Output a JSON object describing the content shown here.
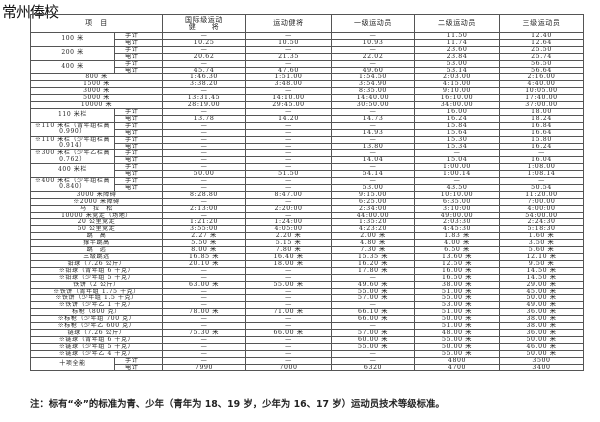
{
  "brand": "常州俸校",
  "header": {
    "item": "项　目",
    "cols": [
      "国际级运动\n健　　将",
      "运动健将",
      "一级运动员",
      "二级运动员",
      "三级运动员"
    ]
  },
  "groups": [
    {
      "label": "100 米",
      "rows": [
        {
          "sub": "手计",
          "v": [
            "—",
            "—",
            "—",
            "11.50",
            "12.40"
          ]
        },
        {
          "sub": "电计",
          "v": [
            "10.25",
            "10.50",
            "10.93",
            "11.74",
            "12.64"
          ]
        }
      ]
    },
    {
      "label": "200 米",
      "rows": [
        {
          "sub": "手计",
          "v": [
            "—",
            "—",
            "—",
            "23.60",
            "25.50"
          ]
        },
        {
          "sub": "电计",
          "v": [
            "20.62",
            "21.35",
            "22.02",
            "23.84",
            "25.74"
          ]
        }
      ]
    },
    {
      "label": "400 米",
      "rows": [
        {
          "sub": "手计",
          "v": [
            "—",
            "—",
            "—",
            "53.00",
            "56.50"
          ]
        },
        {
          "sub": "电计",
          "v": [
            "45.74",
            "47.60",
            "49.60",
            "53.14",
            "56.64"
          ]
        }
      ]
    },
    {
      "label": "800 米",
      "rows": [
        {
          "v": [
            "1:46.30",
            "1:51.00",
            "1:54.50",
            "2:03.00",
            "2:16.00"
          ]
        }
      ]
    },
    {
      "label": "1500 米",
      "rows": [
        {
          "v": [
            "3:38.20",
            "3:48.00",
            "3:54.90",
            "4:15.00",
            "4:40.00"
          ]
        }
      ]
    },
    {
      "label": "3000 米",
      "rows": [
        {
          "v": [
            "—",
            "—",
            "8:35.00",
            "9:10.00",
            "10:05.00"
          ]
        }
      ]
    },
    {
      "label": "5000 米",
      "rows": [
        {
          "v": [
            "13:31.45",
            "14:10.00",
            "14:40.00",
            "16:10.00",
            "17:40.00"
          ]
        }
      ]
    },
    {
      "label": "10000 米",
      "rows": [
        {
          "v": [
            "28:19.00",
            "29:45.00",
            "30:50.00",
            "34:00.00",
            "37:00.00"
          ]
        }
      ]
    },
    {
      "label": "110 米栏",
      "rows": [
        {
          "sub": "手计",
          "v": [
            "—",
            "—",
            "—",
            "16.00",
            "18.00"
          ]
        },
        {
          "sub": "电计",
          "v": [
            "13.78",
            "14.20",
            "14.73",
            "16.24",
            "18.24"
          ]
        }
      ]
    },
    {
      "label": "※110 米栏（青年组栏高 0.990）",
      "rows": [
        {
          "sub": "手计",
          "v": [
            "—",
            "—",
            "—",
            "15.84",
            "16.84"
          ]
        },
        {
          "sub": "电计",
          "v": [
            "—",
            "—",
            "14.93",
            "15.64",
            "16.64"
          ]
        }
      ]
    },
    {
      "label": "※110 米栏（少年组栏高 0.914）",
      "rows": [
        {
          "sub": "手计",
          "v": [
            "—",
            "—",
            "—",
            "15.30",
            "15.80"
          ]
        },
        {
          "sub": "电计",
          "v": [
            "—",
            "—",
            "13.80",
            "15.34",
            "16.24"
          ]
        }
      ]
    },
    {
      "label": "※300 米栏（少年乙栏高 0.762）",
      "rows": [
        {
          "sub": "手计",
          "v": [
            "—",
            "—",
            "—",
            "—",
            "—"
          ]
        },
        {
          "sub": "电计",
          "v": [
            "—",
            "—",
            "14.04",
            "15.04",
            "16.04"
          ]
        }
      ]
    },
    {
      "label": "400 米栏",
      "rows": [
        {
          "sub": "手计",
          "v": [
            "—",
            "—",
            "—",
            "1:00.00",
            "1:08.00"
          ]
        },
        {
          "sub": "电计",
          "v": [
            "50.00",
            "51.50",
            "54.14",
            "1:00.14",
            "1:08.14"
          ]
        }
      ]
    },
    {
      "label": "※400 米栏（少年组栏高 0.840）",
      "rows": [
        {
          "sub": "手计",
          "v": [
            "—",
            "—",
            "—",
            "—",
            "—"
          ]
        },
        {
          "sub": "电计",
          "v": [
            "—",
            "—",
            "53.00",
            "43.50",
            "50.54"
          ]
        }
      ]
    },
    {
      "label": "3000 米障碍",
      "rows": [
        {
          "v": [
            "8:28.80",
            "8:47.00",
            "9:15.00",
            "10:10.00",
            "11:20.00"
          ]
        }
      ]
    },
    {
      "label": "※2000 米障碍",
      "rows": [
        {
          "v": [
            "—",
            "—",
            "6:25.00",
            "6:35.00",
            "7:00.00"
          ]
        }
      ]
    },
    {
      "label": "马　拉　松",
      "rows": [
        {
          "v": [
            "2:13:00",
            "2:20:00",
            "2:34:00",
            "3:10:00",
            "4:00:00"
          ]
        }
      ]
    },
    {
      "label": "10000 米竞走（场地）",
      "rows": [
        {
          "v": [
            "—",
            "—",
            "44:00.00",
            "49:00.00",
            "54:00.00"
          ]
        }
      ]
    },
    {
      "label": "20 公里竞走",
      "rows": [
        {
          "v": [
            "1:21:20",
            "1:24:00",
            "1:35:20",
            "2:03:30",
            "2:24:30"
          ]
        }
      ]
    },
    {
      "label": "50 公里竞走",
      "rows": [
        {
          "v": [
            "3:55:00",
            "4:05:00",
            "4:23:20",
            "4:45:30",
            "5:18:30"
          ]
        }
      ]
    },
    {
      "label": "跳　高",
      "rows": [
        {
          "v": [
            "2.27 米",
            "2.20 米",
            "2.00 米",
            "1.83 米",
            "1.60 米"
          ]
        }
      ]
    },
    {
      "label": "撑竿跳高",
      "rows": [
        {
          "v": [
            "5.50 米",
            "5.15 米",
            "4.80 米",
            "4.00 米",
            "3.50 米"
          ]
        }
      ]
    },
    {
      "label": "跳　远",
      "rows": [
        {
          "v": [
            "8.00 米",
            "7.80 米",
            "7.30 米",
            "6.50 米",
            "5.60 米"
          ]
        }
      ]
    },
    {
      "label": "三级跳远",
      "rows": [
        {
          "v": [
            "16.85 米",
            "16.40 米",
            "15.35 米",
            "13.60 米",
            "12.10 米"
          ]
        }
      ]
    },
    {
      "label": "铅球（7.26 公斤）",
      "rows": [
        {
          "v": [
            "20.10 米",
            "18.00 米",
            "16.20 米",
            "12.50 米",
            "9.50 米"
          ]
        }
      ]
    },
    {
      "label": "※铅球（青年组 6 千克）",
      "rows": [
        {
          "v": [
            "—",
            "—",
            "17.80 米",
            "16.00 米",
            "14.50 米"
          ]
        }
      ]
    },
    {
      "label": "※铅球（少年组 5 千克）",
      "rows": [
        {
          "v": [
            "—",
            "—",
            "—",
            "16.50 米",
            "14.50 米"
          ]
        }
      ]
    },
    {
      "label": "铁饼（2 公斤）",
      "rows": [
        {
          "v": [
            "63.00 米",
            "55.00 米",
            "49.60 米",
            "38.00 米",
            "29.00 米"
          ]
        }
      ]
    },
    {
      "label": "※铁饼（青年组 1.75 千克）",
      "rows": [
        {
          "v": [
            "—",
            "—",
            "55.00 米",
            "51.00 米",
            "45.00 米"
          ]
        }
      ]
    },
    {
      "label": "※铁饼（少年组 1.5 千克）",
      "rows": [
        {
          "v": [
            "—",
            "—",
            "57.00 米",
            "55.00 米",
            "50.00 米"
          ]
        }
      ]
    },
    {
      "label": "※铁饼（少年乙 1 千克）",
      "rows": [
        {
          "v": [
            "—",
            "—",
            "—",
            "53.00 米",
            "49.00 米"
          ]
        }
      ]
    },
    {
      "label": "标枪（800 克）",
      "rows": [
        {
          "v": [
            "78.00 米",
            "71.00 米",
            "66.10 米",
            "51.00 米",
            "36.00 米"
          ]
        }
      ]
    },
    {
      "label": "※标枪（少年组 700 克）",
      "rows": [
        {
          "v": [
            "—",
            "—",
            "66.00 米",
            "50.00 米",
            "38.00 米"
          ]
        }
      ]
    },
    {
      "label": "※标枪（少年乙 600 克）",
      "rows": [
        {
          "v": [
            "—",
            "—",
            "—",
            "51.00 米",
            "38.00 米"
          ]
        }
      ]
    },
    {
      "label": "链球（7.26 公斤）",
      "rows": [
        {
          "v": [
            "75.30 米",
            "66.00 米",
            "57.00 米",
            "48.00 米",
            "36.00 米"
          ]
        }
      ]
    },
    {
      "label": "※链球（青年组 6 千克）",
      "rows": [
        {
          "v": [
            "—",
            "—",
            "60.00 米",
            "55.00 米",
            "50.00 米"
          ]
        }
      ]
    },
    {
      "label": "※链球（少年组 5 千克）",
      "rows": [
        {
          "v": [
            "—",
            "—",
            "55.00 米",
            "50.00 米",
            "46.00 米"
          ]
        }
      ]
    },
    {
      "label": "※链球（少年乙 4 千克）",
      "rows": [
        {
          "v": [
            "—",
            "—",
            "—",
            "55.00 米",
            "50.00 米"
          ]
        }
      ]
    },
    {
      "label": "十项全能",
      "rows": [
        {
          "sub": "手计",
          "v": [
            "—",
            "—",
            "—",
            "4800",
            "3500"
          ]
        },
        {
          "sub": "电计",
          "v": [
            "7990",
            "7000",
            "6320",
            "4700",
            "3400"
          ]
        }
      ]
    }
  ],
  "note": "注：标有“※”的标准为青、少年（青年为 18、19 岁，少年为 16、17 岁）运动员技术等级标准。"
}
